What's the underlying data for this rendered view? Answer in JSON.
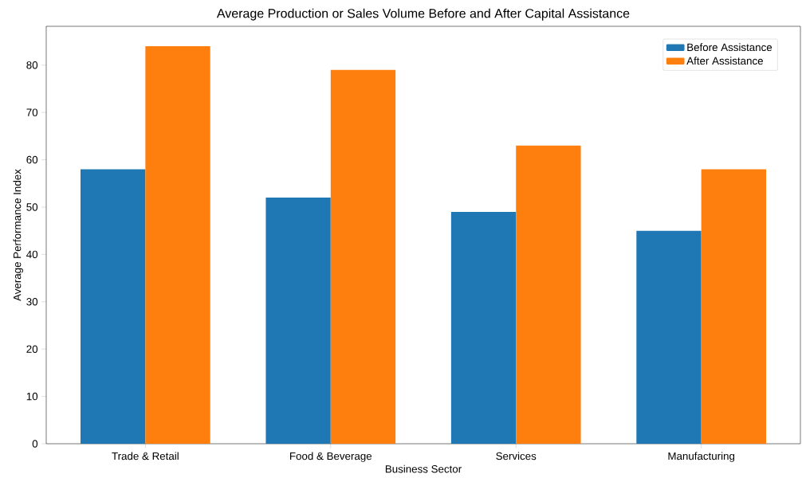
{
  "chart_data": {
    "type": "bar",
    "title": "Average Production or Sales Volume Before and After Capital Assistance",
    "xlabel": "Business Sector",
    "ylabel": "Average Performance Index",
    "categories": [
      "Trade & Retail",
      "Food & Beverage",
      "Services",
      "Manufacturing"
    ],
    "series": [
      {
        "name": "Before Assistance",
        "color": "#1f77b4",
        "values": [
          58,
          52,
          49,
          45
        ]
      },
      {
        "name": "After Assistance",
        "color": "#ff7f0e",
        "values": [
          84,
          79,
          63,
          58
        ]
      }
    ],
    "ylim": [
      0,
      88.2
    ],
    "yticks": [
      0,
      10,
      20,
      30,
      40,
      50,
      60,
      70,
      80
    ],
    "legend": "top right"
  }
}
